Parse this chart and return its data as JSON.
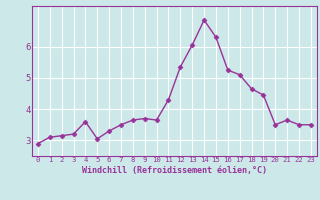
{
  "x": [
    0,
    1,
    2,
    3,
    4,
    5,
    6,
    7,
    8,
    9,
    10,
    11,
    12,
    13,
    14,
    15,
    16,
    17,
    18,
    19,
    20,
    21,
    22,
    23
  ],
  "y": [
    2.9,
    3.1,
    3.15,
    3.2,
    3.6,
    3.05,
    3.3,
    3.5,
    3.65,
    3.7,
    3.65,
    4.3,
    5.35,
    6.05,
    6.85,
    6.3,
    5.25,
    5.1,
    4.65,
    4.45,
    3.5,
    3.65,
    3.5,
    3.5
  ],
  "line_color": "#993399",
  "marker": "D",
  "marker_size": 2.5,
  "xlabel": "Windchill (Refroidissement éolien,°C)",
  "xlim": [
    -0.5,
    23.5
  ],
  "ylim": [
    2.5,
    7.3
  ],
  "yticks": [
    3,
    4,
    5,
    6
  ],
  "xtick_labels": [
    "0",
    "1",
    "2",
    "3",
    "4",
    "5",
    "6",
    "7",
    "8",
    "9",
    "10",
    "11",
    "12",
    "13",
    "14",
    "15",
    "16",
    "17",
    "18",
    "19",
    "20",
    "21",
    "22",
    "23"
  ],
  "bg_color": "#cce8e8",
  "grid_color": "#ffffff",
  "line_width": 1.0,
  "label_color": "#993399",
  "font_name": "monospace",
  "xlabel_fontsize": 6.0,
  "xtick_fontsize": 5.2,
  "ytick_fontsize": 6.5
}
